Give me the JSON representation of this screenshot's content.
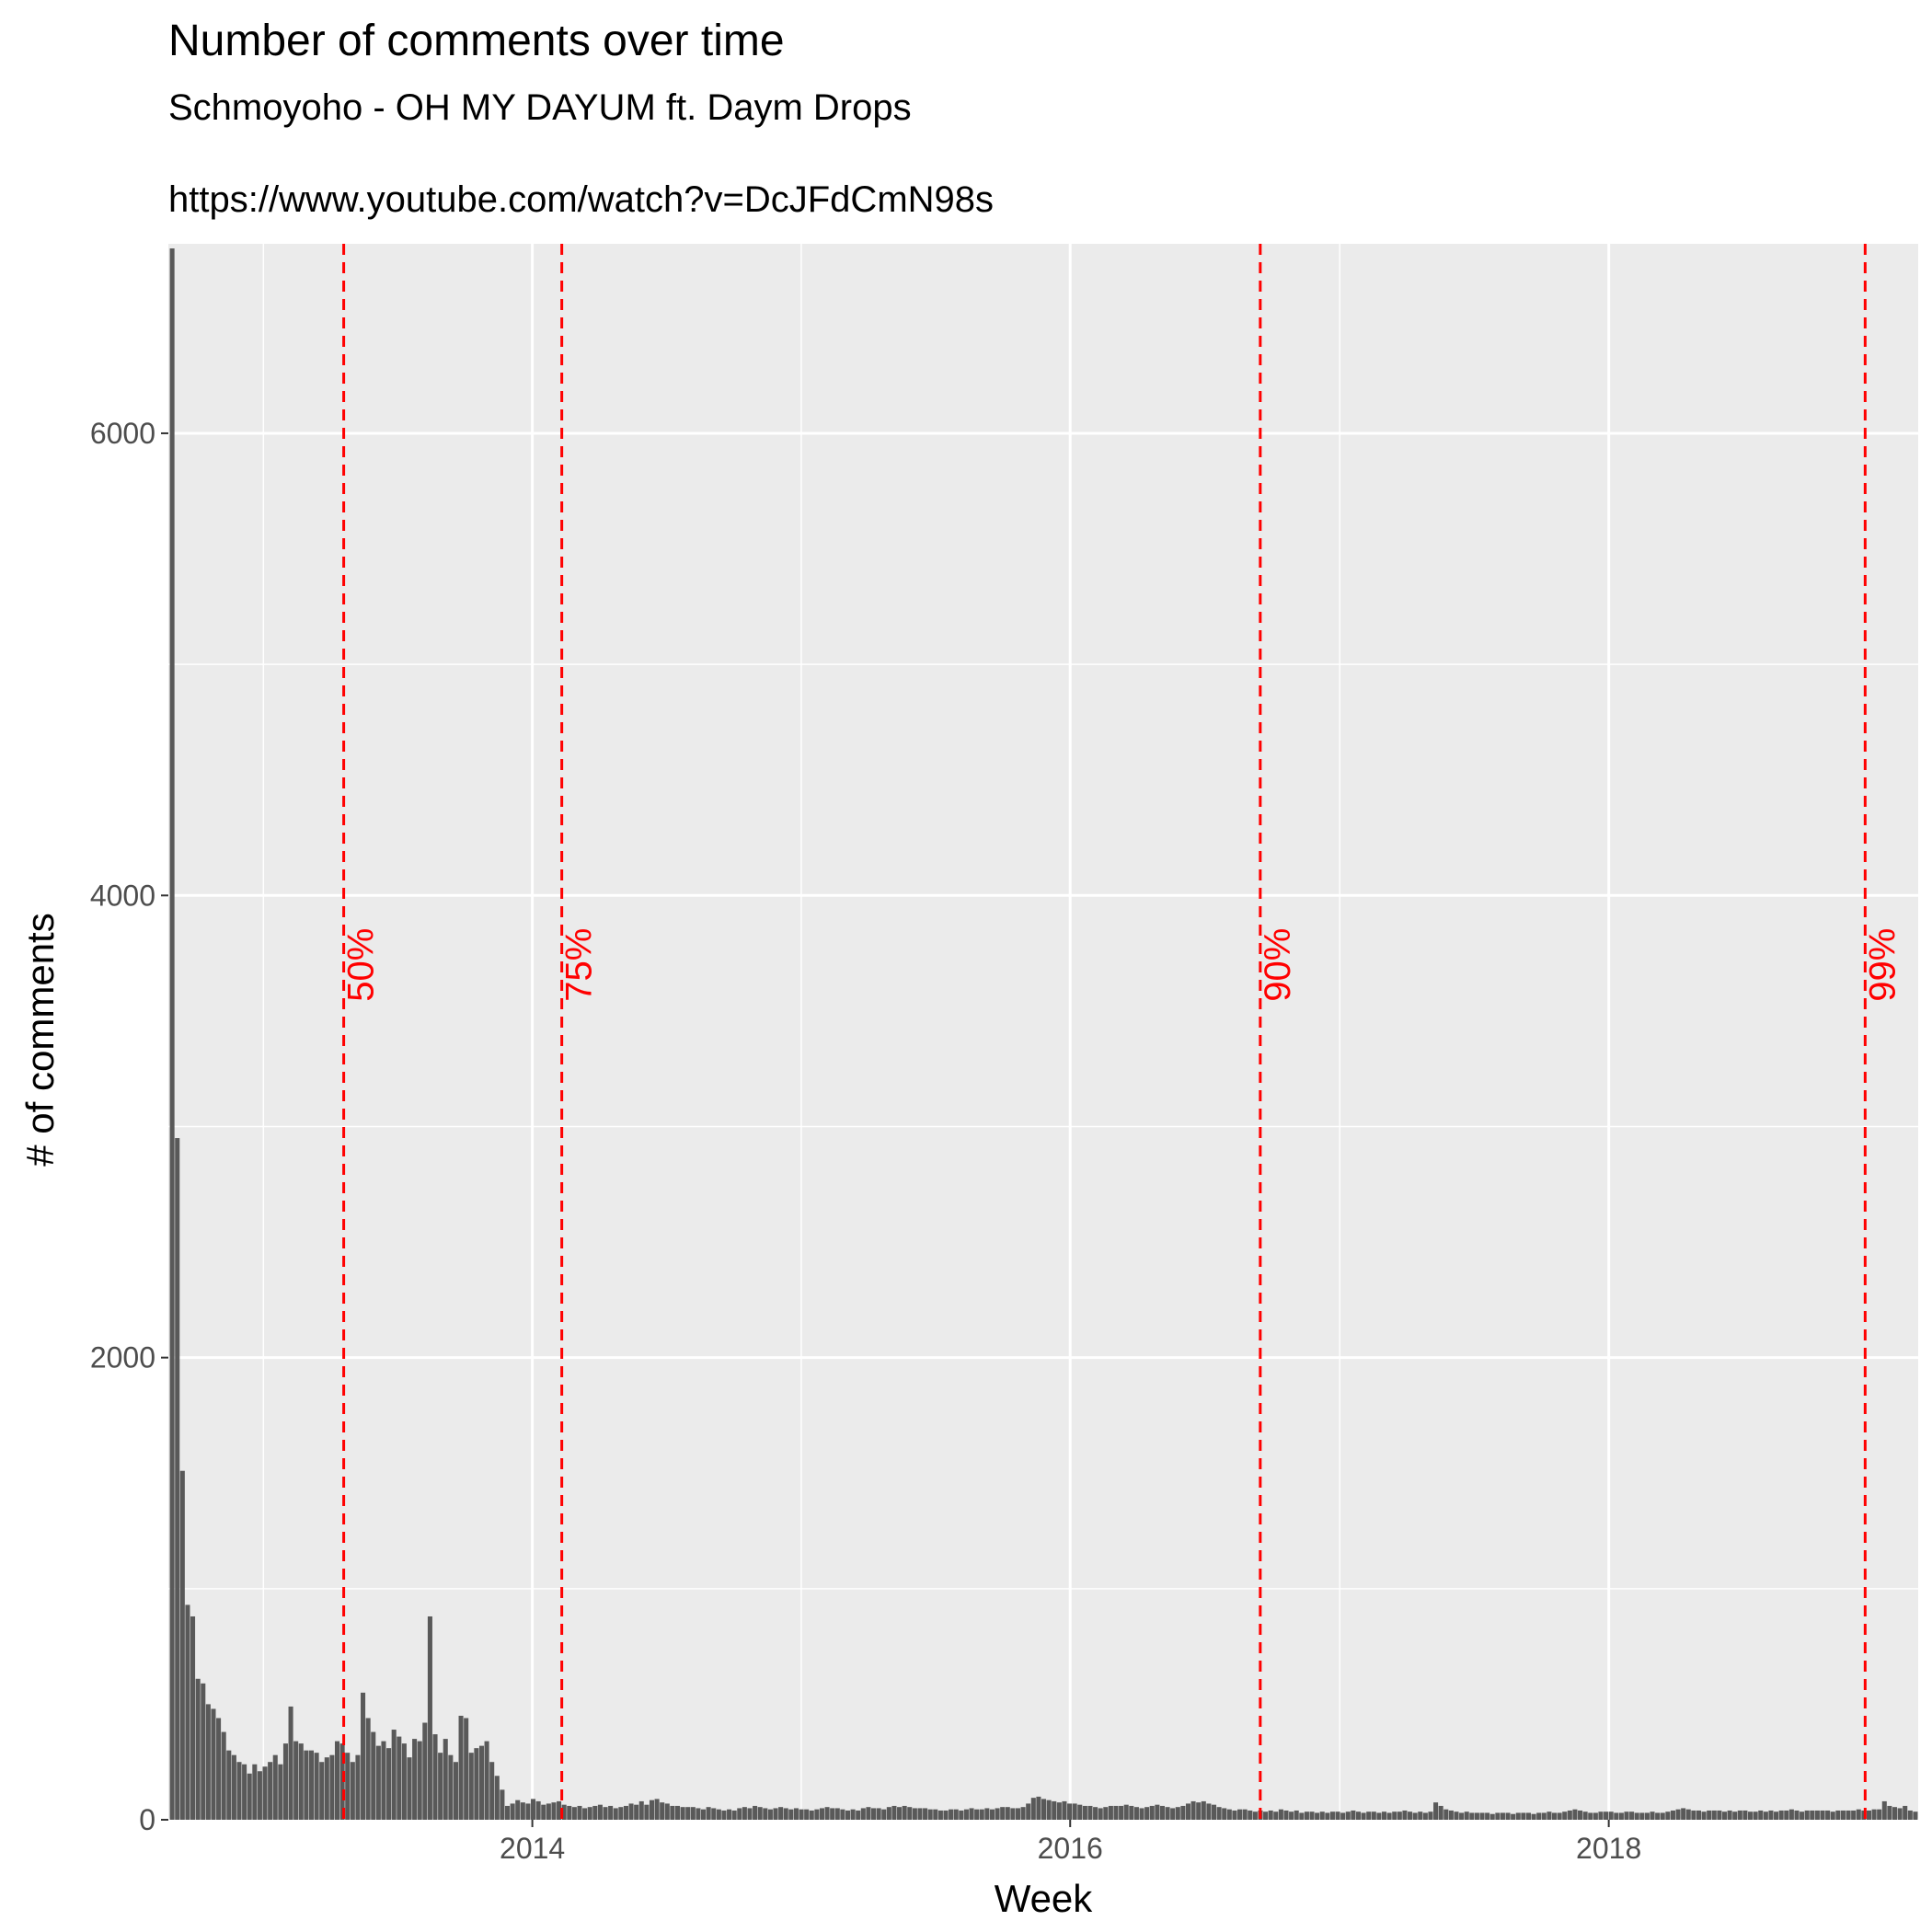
{
  "chart_data": {
    "type": "bar",
    "title": "Number of comments over time",
    "subtitle": "Schmoyoho - OH MY DAYUM ft. Daym Drops",
    "caption": "https://www.youtube.com/watch?v=DcJFdCmN98s",
    "xlabel": "Week",
    "ylabel": "# of comments",
    "x_type": "date",
    "xlim": [
      "2012-08-25",
      "2019-02-25"
    ],
    "ylim": [
      0,
      6820
    ],
    "y_ticks": [
      {
        "value": 0,
        "label": "0"
      },
      {
        "value": 2000,
        "label": "2000"
      },
      {
        "value": 4000,
        "label": "4000"
      },
      {
        "value": 6000,
        "label": "6000"
      }
    ],
    "x_ticks": [
      {
        "value": "2014-01-01",
        "label": "2014"
      },
      {
        "value": "2016-01-01",
        "label": "2016"
      },
      {
        "value": "2018-01-01",
        "label": "2018"
      }
    ],
    "x_minor_ticks": [
      "2013-01-01",
      "2015-01-01",
      "2017-01-01"
    ],
    "y_minor_ticks": [
      1000,
      3000,
      5000
    ],
    "grid": true,
    "bar_color": "#595959",
    "series": [
      {
        "name": "",
        "segments": [
          {
            "start": "2012-08-27",
            "values": [
              6800,
              2950,
              1510,
              930,
              880,
              610,
              590,
              500,
              480,
              440,
              380,
              300,
              280,
              250,
              240,
              200,
              240,
              210,
              230,
              250,
              280,
              240,
              330,
              490,
              340,
              330,
              300,
              300,
              290,
              250,
              270,
              280,
              340,
              330,
              290,
              250,
              280,
              550,
              440,
              380,
              320,
              340,
              310,
              390,
              360,
              330,
              270,
              350,
              340,
              420,
              880,
              370,
              290,
              350,
              280,
              250,
              450,
              440,
              290,
              310,
              320,
              340,
              250,
              190,
              130,
              60
            ]
          },
          {
            "start": "2013-12-02",
            "values": [
              70,
              85,
              75,
              70,
              90,
              80,
              65,
              70,
              75,
              80,
              65,
              60,
              55,
              60,
              50,
              55,
              60,
              65,
              55,
              60,
              50,
              55,
              60,
              70,
              65,
              80,
              65,
              85,
              90,
              75,
              70,
              60,
              60,
              55,
              55,
              55,
              50,
              45,
              55,
              50,
              45,
              40,
              45,
              40,
              50,
              55,
              50,
              60,
              55,
              50,
              45,
              50,
              55,
              50,
              45,
              50,
              45,
              45,
              40,
              45,
              50,
              55,
              50,
              50,
              45,
              40,
              45,
              40,
              50,
              55,
              50,
              50,
              45,
              55,
              60,
              55,
              60,
              55,
              50,
              50,
              50,
              45,
              45,
              40,
              40,
              45,
              45,
              40,
              45,
              50,
              45,
              45,
              50,
              45,
              50,
              55,
              55,
              50
            ]
          },
          {
            "start": "2015-10-19",
            "values": [
              50,
              55,
              70,
              95,
              100,
              90,
              85,
              80,
              75,
              80,
              70,
              70,
              65,
              60,
              60,
              55,
              50,
              55,
              60,
              60,
              60,
              65,
              60,
              55,
              50,
              55,
              60,
              65,
              60,
              55,
              50,
              55,
              60,
              70,
              80,
              75,
              80,
              70,
              65,
              55,
              50,
              45,
              40,
              45,
              45,
              40,
              35,
              40,
              35,
              40,
              35,
              45,
              40,
              35,
              40,
              30,
              35,
              35,
              30,
              35,
              30,
              35,
              35,
              30,
              35,
              40,
              35,
              30,
              35,
              35,
              30,
              35,
              30,
              35,
              35,
              40,
              35,
              30,
              35,
              30,
              35,
              75,
              60,
              45,
              40,
              35,
              30,
              35,
              30,
              30,
              30,
              30,
              25,
              30,
              30,
              30,
              25,
              30,
              30,
              30,
              25,
              30,
              30,
              35,
              30,
              30,
              35,
              40,
              45,
              40,
              35,
              30,
              30,
              35,
              35,
              35,
              30,
              30,
              35,
              35,
              30,
              30,
              30,
              35,
              30,
              30,
              35,
              40,
              45,
              50,
              45,
              40,
              40,
              35,
              40,
              40,
              40,
              35,
              40,
              35,
              40,
              40,
              35,
              35,
              40,
              35,
              40,
              35,
              40,
              40,
              45,
              40,
              35,
              40,
              40,
              40,
              40,
              40,
              35,
              40,
              40,
              40,
              40,
              45,
              40,
              40,
              45,
              45,
              80,
              60,
              55,
              50,
              60,
              40,
              35
            ]
          }
        ]
      }
    ],
    "reference_lines": [
      {
        "x": "2013-04-20",
        "label": "50%"
      },
      {
        "x": "2014-02-10",
        "label": "75%"
      },
      {
        "x": "2016-09-15",
        "label": "90%"
      },
      {
        "x": "2018-12-15",
        "label": "99%"
      }
    ],
    "reference_line_color": "#ff0000",
    "reference_label_y": 3700,
    "panel_color": "#ebebeb",
    "grid_color": "#ffffff"
  }
}
